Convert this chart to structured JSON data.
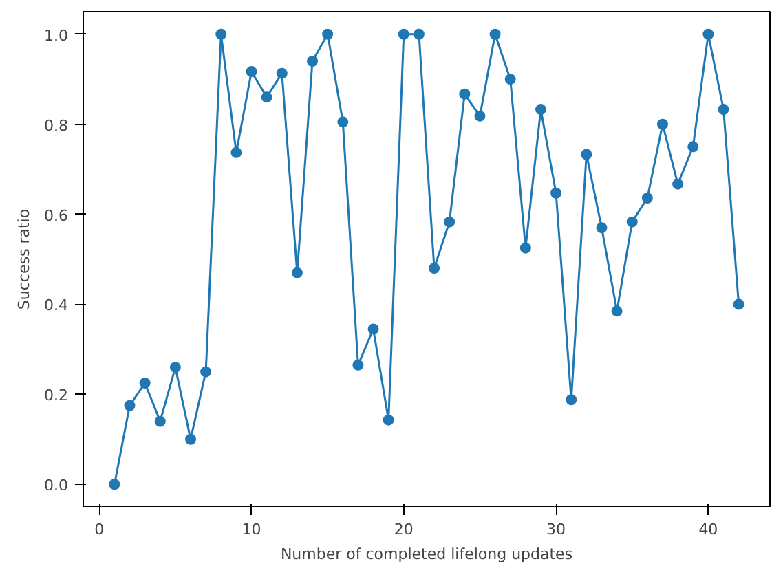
{
  "chart_data": {
    "type": "line",
    "xlabel": "Number of completed lifelong updates",
    "ylabel": "Success ratio",
    "marker": "circle",
    "grid": false,
    "xlim": [
      -1.05,
      44.05
    ],
    "ylim": [
      -0.05,
      1.05
    ],
    "xticks": [
      0,
      10,
      20,
      30,
      40
    ],
    "yticks": [
      {
        "value": 0,
        "label": "0.0"
      },
      {
        "value": 0.2,
        "label": "0.2"
      },
      {
        "value": 0.4,
        "label": "0.4"
      },
      {
        "value": 0.6,
        "label": "0.6"
      },
      {
        "value": 0.8,
        "label": "0.8"
      },
      {
        "value": 1,
        "label": "1.0"
      }
    ],
    "x": [
      1,
      2,
      3,
      4,
      5,
      6,
      7,
      8,
      9,
      10,
      11,
      12,
      13,
      14,
      15,
      16,
      17,
      18,
      19,
      20,
      21,
      22,
      23,
      24,
      25,
      26,
      27,
      28,
      29,
      30,
      31,
      32,
      33,
      34,
      35,
      36,
      37,
      38,
      39,
      40,
      41,
      42
    ],
    "series": [
      {
        "color": "#1f77b4",
        "values": [
          0.0,
          0.175,
          0.225,
          0.14,
          0.26,
          0.1,
          0.25,
          1.0,
          0.737,
          0.917,
          0.86,
          0.913,
          0.47,
          0.94,
          1.0,
          0.805,
          0.265,
          0.345,
          0.143,
          1.0,
          1.0,
          0.48,
          0.583,
          0.867,
          0.818,
          1.0,
          0.9,
          0.525,
          0.833,
          0.647,
          0.188,
          0.733,
          0.57,
          0.385,
          0.583,
          0.636,
          0.8,
          0.667,
          0.75,
          1.0,
          0.833,
          0.4
        ]
      }
    ]
  }
}
